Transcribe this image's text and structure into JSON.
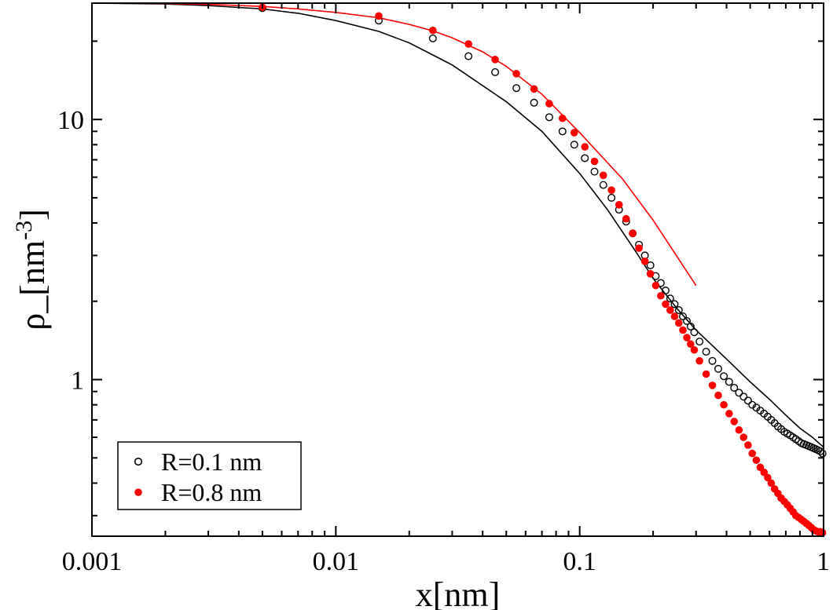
{
  "chart_data": {
    "type": "scatter",
    "title": "",
    "xlabel": "x[nm]",
    "ylabel": {
      "base": "ρ_[nm",
      "sup": "-3",
      "close": "]"
    },
    "xscale": "log",
    "yscale": "log",
    "xlim": [
      0.001,
      1
    ],
    "ylim": [
      0.25,
      28
    ],
    "xticks": [
      0.001,
      0.01,
      0.1,
      1
    ],
    "xtick_labels": [
      "0.001",
      "0.01",
      "0.1",
      "1"
    ],
    "yticks": [
      1,
      10
    ],
    "ytick_labels": [
      "1",
      "10"
    ],
    "grid": false,
    "legend_position": "bottom-left",
    "series": [
      {
        "name": "R=0.1 nm",
        "color": "#000000",
        "marker": "open-circle",
        "x": [
          0.005,
          0.015,
          0.025,
          0.035,
          0.045,
          0.055,
          0.065,
          0.075,
          0.085,
          0.095,
          0.105,
          0.115,
          0.125,
          0.135,
          0.145,
          0.155,
          0.165,
          0.175,
          0.185,
          0.195,
          0.205,
          0.215,
          0.225,
          0.235,
          0.245,
          0.255,
          0.265,
          0.275,
          0.285,
          0.295,
          0.31,
          0.33,
          0.35,
          0.37,
          0.39,
          0.41,
          0.43,
          0.45,
          0.47,
          0.49,
          0.51,
          0.53,
          0.55,
          0.57,
          0.59,
          0.61,
          0.63,
          0.65,
          0.67,
          0.69,
          0.71,
          0.73,
          0.75,
          0.77,
          0.79,
          0.81,
          0.83,
          0.85,
          0.87,
          0.89,
          0.91,
          0.93,
          0.95,
          0.97,
          0.99
        ],
        "y": [
          26.8,
          24.0,
          20.5,
          17.5,
          15.2,
          13.2,
          11.6,
          10.2,
          9.0,
          8.0,
          7.1,
          6.3,
          5.6,
          5.0,
          4.5,
          4.05,
          3.65,
          3.3,
          3.0,
          2.75,
          2.5,
          2.35,
          2.2,
          2.05,
          1.95,
          1.85,
          1.75,
          1.68,
          1.6,
          1.52,
          1.4,
          1.28,
          1.18,
          1.1,
          1.03,
          0.98,
          0.93,
          0.89,
          0.86,
          0.83,
          0.8,
          0.78,
          0.76,
          0.74,
          0.72,
          0.7,
          0.68,
          0.66,
          0.645,
          0.63,
          0.62,
          0.61,
          0.6,
          0.59,
          0.58,
          0.57,
          0.565,
          0.56,
          0.555,
          0.55,
          0.545,
          0.54,
          0.535,
          0.53,
          0.52
        ]
      },
      {
        "name": "R=0.8 nm",
        "color": "#ff0000",
        "marker": "filled-circle",
        "x": [
          0.005,
          0.015,
          0.025,
          0.035,
          0.045,
          0.055,
          0.065,
          0.075,
          0.085,
          0.095,
          0.105,
          0.115,
          0.125,
          0.135,
          0.145,
          0.155,
          0.165,
          0.175,
          0.185,
          0.195,
          0.205,
          0.215,
          0.225,
          0.235,
          0.245,
          0.255,
          0.265,
          0.275,
          0.285,
          0.295,
          0.31,
          0.33,
          0.35,
          0.37,
          0.39,
          0.41,
          0.43,
          0.45,
          0.47,
          0.49,
          0.51,
          0.53,
          0.55,
          0.57,
          0.59,
          0.61,
          0.63,
          0.65,
          0.67,
          0.69,
          0.71,
          0.73,
          0.75,
          0.77,
          0.79,
          0.81,
          0.83,
          0.85,
          0.87,
          0.89,
          0.91,
          0.93,
          0.95,
          0.97,
          0.99
        ],
        "y": [
          27.0,
          25.0,
          22.0,
          19.5,
          17.0,
          15.0,
          13.1,
          11.5,
          10.1,
          8.9,
          7.85,
          6.9,
          6.1,
          5.35,
          4.7,
          4.15,
          3.65,
          3.2,
          2.85,
          2.55,
          2.3,
          2.1,
          1.95,
          1.85,
          1.75,
          1.65,
          1.55,
          1.45,
          1.37,
          1.3,
          1.18,
          1.05,
          0.95,
          0.87,
          0.8,
          0.74,
          0.69,
          0.64,
          0.6,
          0.56,
          0.52,
          0.49,
          0.46,
          0.44,
          0.42,
          0.4,
          0.38,
          0.365,
          0.35,
          0.34,
          0.33,
          0.32,
          0.31,
          0.3,
          0.295,
          0.29,
          0.285,
          0.28,
          0.275,
          0.27,
          0.265,
          0.262,
          0.26,
          0.26,
          0.258
        ]
      }
    ],
    "lines": [
      {
        "series": "R=0.1 nm",
        "color": "#000000",
        "x": [
          0.001,
          0.002,
          0.003,
          0.005,
          0.007,
          0.01,
          0.015,
          0.02,
          0.03,
          0.05,
          0.07,
          0.1,
          0.13,
          0.17,
          0.2,
          0.25,
          0.3,
          0.4,
          0.5,
          0.6,
          0.7,
          0.8,
          0.9,
          1.0
        ],
        "y": [
          28.0,
          27.8,
          27.4,
          26.6,
          25.6,
          24.0,
          21.8,
          19.7,
          16.2,
          11.7,
          9.0,
          6.2,
          4.5,
          3.1,
          2.45,
          1.88,
          1.55,
          1.2,
          0.98,
          0.84,
          0.73,
          0.65,
          0.6,
          0.55
        ]
      },
      {
        "series": "R=0.8 nm",
        "color": "#ff0000",
        "x": [
          0.001,
          0.002,
          0.003,
          0.005,
          0.007,
          0.01,
          0.015,
          0.02,
          0.025,
          0.03,
          0.04,
          0.05,
          0.07,
          0.1,
          0.15,
          0.2,
          0.3
        ],
        "y": [
          28.0,
          27.9,
          27.7,
          27.2,
          26.6,
          25.8,
          24.6,
          23.2,
          21.9,
          20.6,
          18.2,
          16.0,
          12.5,
          8.9,
          5.9,
          4.1,
          2.3
        ]
      }
    ]
  }
}
